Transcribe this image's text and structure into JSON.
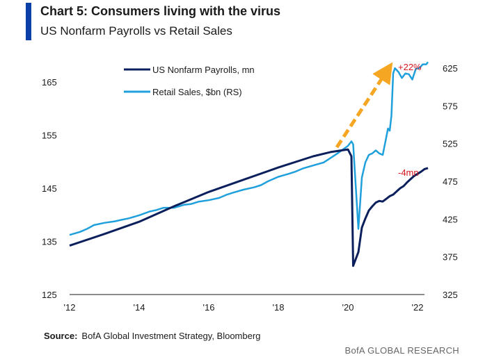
{
  "header": {
    "title": "Chart 5: Consumers living with the virus",
    "subtitle": "US Nonfarm Payrolls vs Retail Sales"
  },
  "source": {
    "label": "Source:",
    "text": "BofA Global Investment Strategy, Bloomberg"
  },
  "footer": {
    "text": "BofA GLOBAL RESEARCH"
  },
  "colors": {
    "payrolls": "#0b1f5c",
    "retail": "#1fa0dc",
    "arrow": "#f5a623",
    "annotation": "#d7151c",
    "accent": "#0b3fa8"
  },
  "chart_data": {
    "type": "line",
    "x_ticks": [
      "'12",
      "'14",
      "'16",
      "'18",
      "'20",
      "'22"
    ],
    "x_range": [
      2012,
      2022.2
    ],
    "y_left_ticks": [
      125,
      135,
      145,
      155,
      165
    ],
    "y_left_range": [
      125,
      171
    ],
    "y_right_ticks": [
      325,
      375,
      425,
      475,
      525,
      575,
      625
    ],
    "y_right_range": [
      325,
      649
    ],
    "legend": [
      "US Nonfarm Payrolls, mn",
      "Retail Sales, $bn (RS)"
    ],
    "legend_position": "top-left",
    "grid": false,
    "annotations": [
      {
        "text": "+22%",
        "series": "Retail Sales, $bn (RS)"
      },
      {
        "text": "-4mn",
        "series": "US Nonfarm Payrolls, mn"
      }
    ],
    "series": [
      {
        "name": "US Nonfarm Payrolls, mn",
        "axis": "left",
        "x": [
          2012.0,
          2013.0,
          2014.0,
          2015.0,
          2016.0,
          2017.0,
          2018.0,
          2019.0,
          2019.5,
          2020.0,
          2020.1,
          2020.15,
          2020.3,
          2020.4,
          2020.5,
          2020.6,
          2020.7,
          2020.8,
          2020.9,
          2021.0,
          2021.1,
          2021.2,
          2021.3,
          2021.4,
          2021.5,
          2021.6,
          2021.7,
          2021.8,
          2021.9,
          2022.0,
          2022.1,
          2022.2,
          2022.3
        ],
        "y": [
          134.2,
          136.4,
          138.7,
          141.6,
          144.3,
          146.6,
          148.9,
          151.0,
          151.8,
          152.3,
          151.0,
          130.4,
          133.0,
          137.6,
          139.3,
          140.8,
          141.6,
          142.3,
          142.6,
          142.5,
          143.0,
          143.5,
          143.8,
          144.4,
          145.0,
          145.4,
          146.1,
          146.7,
          147.3,
          147.7,
          148.1,
          148.6,
          148.8
        ]
      },
      {
        "name": "Retail Sales, $bn (RS)",
        "axis": "right",
        "x": [
          2012.0,
          2012.3,
          2012.5,
          2012.7,
          2013.0,
          2013.3,
          2013.5,
          2013.7,
          2014.0,
          2014.3,
          2014.5,
          2014.7,
          2015.0,
          2015.3,
          2015.5,
          2015.7,
          2016.0,
          2016.3,
          2016.5,
          2016.7,
          2017.0,
          2017.3,
          2017.5,
          2017.7,
          2018.0,
          2018.3,
          2018.5,
          2018.7,
          2019.0,
          2019.3,
          2019.5,
          2019.7,
          2020.0,
          2020.1,
          2020.15,
          2020.3,
          2020.4,
          2020.5,
          2020.6,
          2020.7,
          2020.8,
          2020.9,
          2021.0,
          2021.1,
          2021.15,
          2021.2,
          2021.25,
          2021.3,
          2021.35,
          2021.45,
          2021.55,
          2021.65,
          2021.75,
          2021.85,
          2021.95,
          2022.05,
          2022.15,
          2022.25,
          2022.3
        ],
        "y": [
          404,
          408,
          412,
          417,
          420,
          422,
          424,
          426,
          430,
          435,
          437,
          440,
          440,
          444,
          445,
          448,
          450,
          453,
          457,
          460,
          464,
          467,
          470,
          475,
          481,
          485,
          488,
          492,
          496,
          500,
          506,
          512,
          522,
          528,
          524,
          412,
          480,
          500,
          510,
          512,
          516,
          512,
          510,
          533,
          545,
          542,
          562,
          618,
          625,
          620,
          612,
          618,
          617,
          610,
          624,
          625,
          630,
          630,
          633
        ]
      }
    ]
  }
}
